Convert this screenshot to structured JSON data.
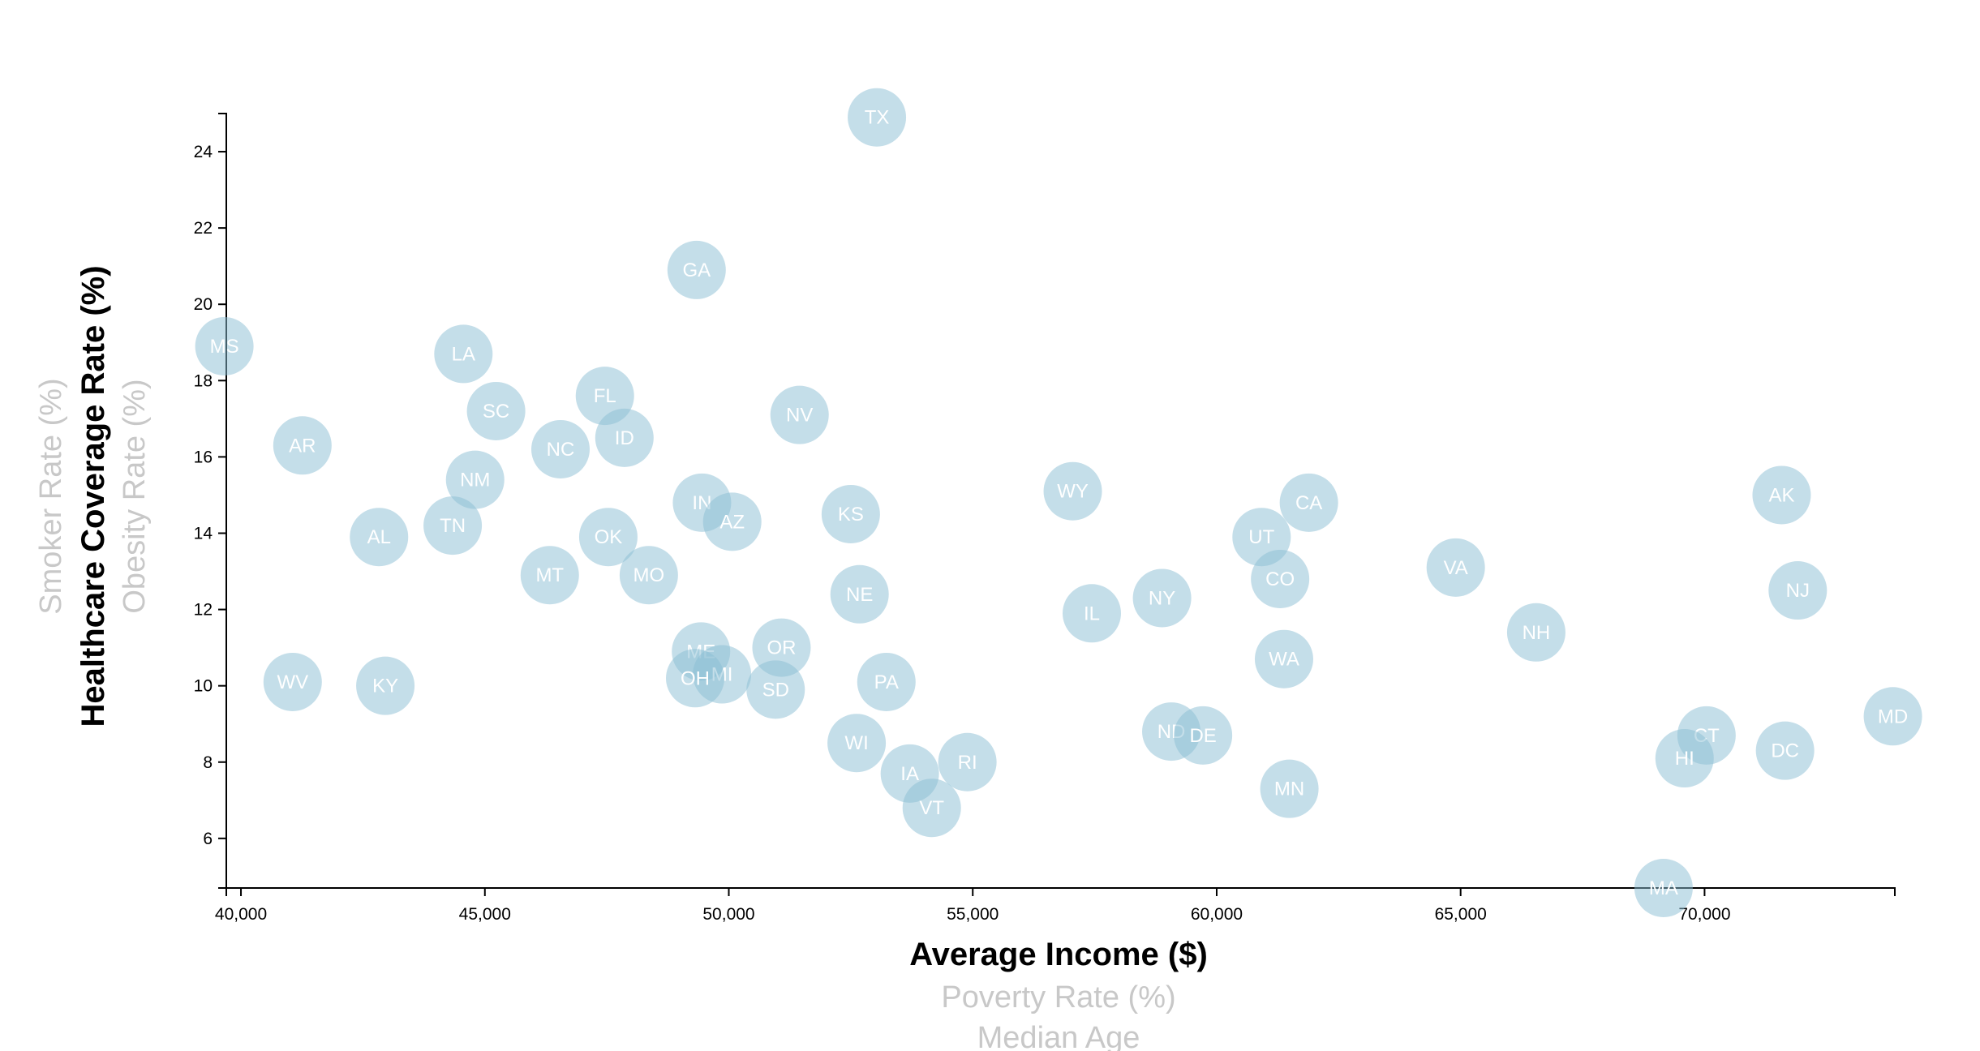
{
  "chart_data": {
    "type": "scatter",
    "xlabel": "Average Income ($)",
    "ylabel": "Healthcare Coverage Rate (%)",
    "x_axis_options": [
      "Average Income ($)",
      "Poverty Rate (%)",
      "Median Age"
    ],
    "y_axis_options": [
      "Healthcare Coverage Rate (%)",
      "Obesity Rate (%)",
      "Smoker Rate (%)"
    ],
    "active_x": "Average Income ($)",
    "active_y": "Healthcare Coverage Rate (%)",
    "xlim": [
      39700,
      73900
    ],
    "ylim": [
      4.7,
      25.0
    ],
    "x_ticks": [
      40000,
      45000,
      50000,
      55000,
      60000,
      65000,
      70000
    ],
    "x_tick_labels": [
      "40,000",
      "45,000",
      "50,000",
      "55,000",
      "60,000",
      "65,000",
      "70,000"
    ],
    "y_ticks": [
      6,
      8,
      10,
      12,
      14,
      16,
      18,
      20,
      22,
      24
    ],
    "y_tick_labels": [
      "6",
      "8",
      "10",
      "12",
      "14",
      "16",
      "18",
      "20",
      "22",
      "24"
    ],
    "grid": false,
    "marker_color": "#89bdd3",
    "points": [
      {
        "label": "TX",
        "x": 53035,
        "y": 24.9
      },
      {
        "label": "GA",
        "x": 49340,
        "y": 20.9
      },
      {
        "label": "MS",
        "x": 39660,
        "y": 18.9
      },
      {
        "label": "LA",
        "x": 44560,
        "y": 18.7
      },
      {
        "label": "FL",
        "x": 47460,
        "y": 17.6
      },
      {
        "label": "SC",
        "x": 45230,
        "y": 17.2
      },
      {
        "label": "NV",
        "x": 51450,
        "y": 17.1
      },
      {
        "label": "ID",
        "x": 47860,
        "y": 16.5
      },
      {
        "label": "AR",
        "x": 41260,
        "y": 16.3
      },
      {
        "label": "NC",
        "x": 46550,
        "y": 16.2
      },
      {
        "label": "NM",
        "x": 44800,
        "y": 15.4
      },
      {
        "label": "WY",
        "x": 57050,
        "y": 15.1
      },
      {
        "label": "AK",
        "x": 71580,
        "y": 15.0
      },
      {
        "label": "IN",
        "x": 49450,
        "y": 14.8
      },
      {
        "label": "CA",
        "x": 61890,
        "y": 14.8
      },
      {
        "label": "KS",
        "x": 52500,
        "y": 14.5
      },
      {
        "label": "AZ",
        "x": 50070,
        "y": 14.3
      },
      {
        "label": "TN",
        "x": 44340,
        "y": 14.2
      },
      {
        "label": "AL",
        "x": 42830,
        "y": 13.9
      },
      {
        "label": "OK",
        "x": 47530,
        "y": 13.9
      },
      {
        "label": "UT",
        "x": 60920,
        "y": 13.9
      },
      {
        "label": "VA",
        "x": 64900,
        "y": 13.1
      },
      {
        "label": "MT",
        "x": 46330,
        "y": 12.9
      },
      {
        "label": "MO",
        "x": 48360,
        "y": 12.9
      },
      {
        "label": "CO",
        "x": 61300,
        "y": 12.8
      },
      {
        "label": "NJ",
        "x": 71910,
        "y": 12.5
      },
      {
        "label": "NE",
        "x": 52680,
        "y": 12.4
      },
      {
        "label": "NY",
        "x": 58880,
        "y": 12.3
      },
      {
        "label": "IL",
        "x": 57440,
        "y": 11.9
      },
      {
        "label": "NH",
        "x": 66550,
        "y": 11.4
      },
      {
        "label": "ME",
        "x": 49430,
        "y": 10.9
      },
      {
        "label": "OR",
        "x": 51080,
        "y": 11.0
      },
      {
        "label": "WA",
        "x": 61380,
        "y": 10.7
      },
      {
        "label": "MI",
        "x": 49860,
        "y": 10.3
      },
      {
        "label": "OH",
        "x": 49310,
        "y": 10.2
      },
      {
        "label": "WV",
        "x": 41060,
        "y": 10.1
      },
      {
        "label": "PA",
        "x": 53230,
        "y": 10.1
      },
      {
        "label": "KY",
        "x": 42960,
        "y": 10.0
      },
      {
        "label": "SD",
        "x": 50960,
        "y": 9.9
      },
      {
        "label": "MD",
        "x": 73860,
        "y": 9.2
      },
      {
        "label": "ND",
        "x": 59070,
        "y": 8.8
      },
      {
        "label": "DE",
        "x": 59720,
        "y": 8.7
      },
      {
        "label": "CT",
        "x": 70040,
        "y": 8.7
      },
      {
        "label": "WI",
        "x": 52620,
        "y": 8.5
      },
      {
        "label": "DC",
        "x": 71650,
        "y": 8.3
      },
      {
        "label": "HI",
        "x": 69590,
        "y": 8.1
      },
      {
        "label": "RI",
        "x": 54890,
        "y": 8.0
      },
      {
        "label": "IA",
        "x": 53710,
        "y": 7.7
      },
      {
        "label": "MN",
        "x": 61490,
        "y": 7.3
      },
      {
        "label": "VT",
        "x": 54160,
        "y": 6.8
      },
      {
        "label": "MA",
        "x": 69160,
        "y": 4.7
      }
    ]
  }
}
